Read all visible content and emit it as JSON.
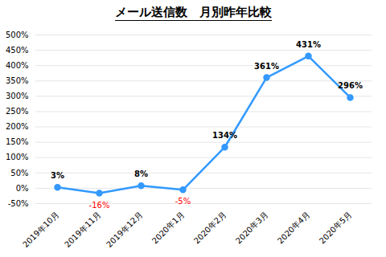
{
  "chart_data": {
    "type": "line",
    "title": "メール送信数　月別昨年比較",
    "categories": [
      "2019年10月",
      "2019年11月",
      "2019年12月",
      "2020年1月",
      "2020年2月",
      "2020年3月",
      "2020年4月",
      "2020年5月"
    ],
    "values": [
      3,
      -16,
      8,
      -5,
      134,
      361,
      431,
      296
    ],
    "value_labels": [
      "3%",
      "-16%",
      "8%",
      "-5%",
      "134%",
      "361%",
      "431%",
      "296%"
    ],
    "data_labels": true,
    "color": "#3399FF",
    "marker": "circle",
    "ylim": [
      -50,
      500
    ],
    "yticks": [
      {
        "value": -50,
        "label": "-50%"
      },
      {
        "value": 0,
        "label": "0%"
      },
      {
        "value": 50,
        "label": "50%"
      },
      {
        "value": 100,
        "label": "100%"
      },
      {
        "value": 150,
        "label": "150%"
      },
      {
        "value": 200,
        "label": "200%"
      },
      {
        "value": 250,
        "label": "250%"
      },
      {
        "value": 300,
        "label": "300%"
      },
      {
        "value": 350,
        "label": "350%"
      },
      {
        "value": 400,
        "label": "400%"
      },
      {
        "value": 450,
        "label": "450%"
      },
      {
        "value": 500,
        "label": "500%"
      }
    ],
    "grid": true
  }
}
